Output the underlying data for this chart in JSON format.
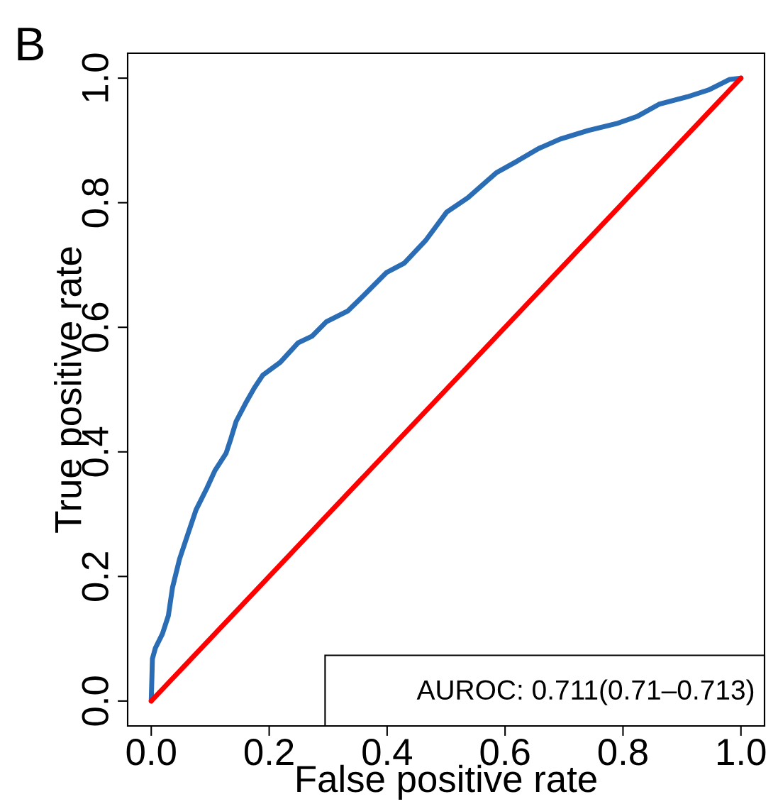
{
  "chart_data": {
    "type": "line",
    "xlabel": "False positive rate",
    "ylabel": "True positive rate",
    "annotations": [
      "B",
      "AUROC: 0.711(0.71–0.713)"
    ],
    "xlim": [
      -0.04,
      1.04
    ],
    "ylim": [
      -0.04,
      1.04
    ],
    "xticks": [
      {
        "value": 0,
        "label": "0.0"
      },
      {
        "value": 0.2,
        "label": "0.2"
      },
      {
        "value": 0.4,
        "label": "0.4"
      },
      {
        "value": 0.6,
        "label": "0.6"
      },
      {
        "value": 0.8,
        "label": "0.8"
      },
      {
        "value": 1,
        "label": "1.0"
      }
    ],
    "yticks": [
      {
        "value": 0,
        "label": "0.0"
      },
      {
        "value": 0.2,
        "label": "0.2"
      },
      {
        "value": 0.4,
        "label": "0.4"
      },
      {
        "value": 0.6,
        "label": "0.6"
      },
      {
        "value": 0.8,
        "label": "0.8"
      },
      {
        "value": 1,
        "label": "1.0"
      }
    ],
    "grid": false,
    "marker": "none",
    "line_style": "solid",
    "series": [
      {
        "color": "#2a6db5",
        "x": [
          0,
          0.002,
          0.007,
          0.019,
          0.029,
          0.036,
          0.048,
          0.06,
          0.076,
          0.094,
          0.108,
          0.127,
          0.135,
          0.144,
          0.16,
          0.175,
          0.189,
          0.219,
          0.249,
          0.273,
          0.297,
          0.333,
          0.357,
          0.399,
          0.429,
          0.465,
          0.501,
          0.537,
          0.585,
          0.621,
          0.657,
          0.693,
          0.741,
          0.789,
          0.825,
          0.861,
          0.909,
          0.945,
          0.981,
          1
        ],
        "values": [
          0,
          0.068,
          0.085,
          0.108,
          0.137,
          0.182,
          0.228,
          0.262,
          0.307,
          0.341,
          0.37,
          0.398,
          0.421,
          0.449,
          0.478,
          0.503,
          0.523,
          0.544,
          0.575,
          0.586,
          0.609,
          0.626,
          0.648,
          0.688,
          0.703,
          0.739,
          0.785,
          0.808,
          0.848,
          0.867,
          0.887,
          0.902,
          0.916,
          0.927,
          0.939,
          0.958,
          0.97,
          0.981,
          0.998,
          1
        ]
      },
      {
        "color": "#ff0000",
        "x": [
          0,
          1
        ],
        "values": [
          0,
          1
        ]
      }
    ]
  }
}
